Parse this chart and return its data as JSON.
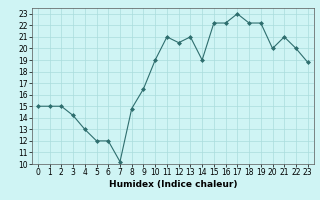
{
  "x": [
    0,
    1,
    2,
    3,
    4,
    5,
    6,
    7,
    8,
    9,
    10,
    11,
    12,
    13,
    14,
    15,
    16,
    17,
    18,
    19,
    20,
    21,
    22,
    23
  ],
  "y": [
    15,
    15,
    15,
    14.2,
    13,
    12,
    12,
    10.2,
    14.8,
    16.5,
    19,
    21,
    20.5,
    21,
    19,
    22.2,
    22.2,
    23,
    22.2,
    22.2,
    20,
    21,
    20,
    18.8
  ],
  "line_color": "#2e6e6e",
  "marker": "D",
  "marker_size": 2,
  "bg_color": "#cff4f4",
  "grid_color": "#aadddd",
  "xlabel": "Humidex (Indice chaleur)",
  "xlim": [
    -0.5,
    23.5
  ],
  "ylim": [
    10,
    23.5
  ],
  "yticks": [
    10,
    11,
    12,
    13,
    14,
    15,
    16,
    17,
    18,
    19,
    20,
    21,
    22,
    23
  ],
  "xticks": [
    0,
    1,
    2,
    3,
    4,
    5,
    6,
    7,
    8,
    9,
    10,
    11,
    12,
    13,
    14,
    15,
    16,
    17,
    18,
    19,
    20,
    21,
    22,
    23
  ],
  "tick_fontsize": 5.5,
  "label_fontsize": 6.5
}
